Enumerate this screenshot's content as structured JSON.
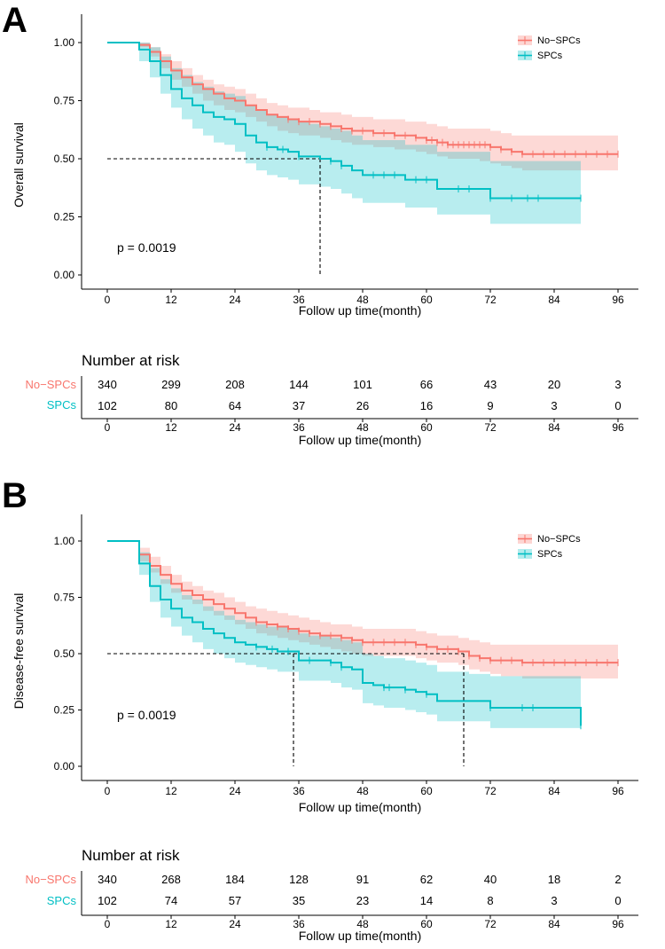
{
  "colors": {
    "no_spcs": "#F8766D",
    "spcs": "#00BFC4",
    "no_spcs_band": "#F8766D",
    "spcs_band": "#00BFC4"
  },
  "chart_data": [
    {
      "panel": "A",
      "type": "line",
      "xlabel": "Follow up time(month)",
      "ylabel": "Overall survival",
      "xlim": [
        0,
        96
      ],
      "ylim": [
        0,
        1
      ],
      "xticks": [
        0,
        12,
        24,
        36,
        48,
        60,
        72,
        84,
        96
      ],
      "yticks": [
        "0.00",
        "0.25",
        "0.50",
        "0.75",
        "1.00"
      ],
      "legend_position": "top-right",
      "pvalue": "p = 0.0019",
      "median_lines": [
        {
          "series": "SPCs",
          "x": 40,
          "y": 0.5
        }
      ],
      "series": [
        {
          "name": "No-SPCs",
          "x": [
            0,
            4,
            6,
            8,
            10,
            12,
            14,
            16,
            18,
            20,
            22,
            24,
            26,
            28,
            30,
            32,
            34,
            36,
            38,
            40,
            42,
            44,
            46,
            48,
            50,
            52,
            54,
            56,
            58,
            60,
            62,
            64,
            66,
            68,
            70,
            72,
            74,
            76,
            78,
            80,
            82,
            84,
            86,
            88,
            90,
            92,
            94,
            96
          ],
          "y": [
            1.0,
            1.0,
            0.99,
            0.96,
            0.92,
            0.88,
            0.85,
            0.82,
            0.8,
            0.78,
            0.76,
            0.75,
            0.73,
            0.71,
            0.69,
            0.68,
            0.67,
            0.66,
            0.66,
            0.65,
            0.64,
            0.63,
            0.62,
            0.62,
            0.61,
            0.61,
            0.6,
            0.6,
            0.59,
            0.58,
            0.57,
            0.56,
            0.56,
            0.56,
            0.56,
            0.55,
            0.54,
            0.53,
            0.52,
            0.52,
            0.52,
            0.52,
            0.52,
            0.52,
            0.52,
            0.52,
            0.52,
            0.52
          ],
          "lower": [
            1.0,
            1.0,
            0.98,
            0.94,
            0.89,
            0.84,
            0.81,
            0.78,
            0.75,
            0.73,
            0.71,
            0.7,
            0.68,
            0.66,
            0.64,
            0.62,
            0.61,
            0.6,
            0.6,
            0.59,
            0.58,
            0.57,
            0.56,
            0.56,
            0.55,
            0.55,
            0.54,
            0.54,
            0.53,
            0.52,
            0.51,
            0.5,
            0.5,
            0.5,
            0.49,
            0.48,
            0.47,
            0.46,
            0.45,
            0.45,
            0.45,
            0.45,
            0.45,
            0.45,
            0.45,
            0.45,
            0.45,
            0.45
          ],
          "upper": [
            1.0,
            1.0,
            1.0,
            0.98,
            0.95,
            0.92,
            0.89,
            0.86,
            0.84,
            0.82,
            0.81,
            0.8,
            0.78,
            0.76,
            0.74,
            0.73,
            0.72,
            0.72,
            0.71,
            0.7,
            0.7,
            0.69,
            0.68,
            0.68,
            0.67,
            0.67,
            0.67,
            0.66,
            0.66,
            0.65,
            0.64,
            0.63,
            0.63,
            0.63,
            0.63,
            0.62,
            0.61,
            0.6,
            0.6,
            0.6,
            0.6,
            0.6,
            0.6,
            0.6,
            0.6,
            0.6,
            0.6,
            0.6
          ],
          "censors": [
            34,
            36,
            38,
            40,
            42,
            44,
            46,
            48,
            50,
            52,
            54,
            56,
            58,
            60,
            61,
            62,
            63,
            64,
            65,
            66,
            67,
            68,
            69,
            70,
            71,
            72,
            74,
            76,
            78,
            80,
            82,
            84,
            86,
            88,
            90,
            92,
            94,
            96
          ]
        },
        {
          "name": "SPCs",
          "x": [
            0,
            3,
            6,
            8,
            10,
            12,
            14,
            16,
            18,
            20,
            22,
            24,
            26,
            28,
            30,
            32,
            34,
            36,
            38,
            40,
            42,
            44,
            46,
            48,
            50,
            52,
            54,
            56,
            58,
            60,
            62,
            64,
            66,
            68,
            70,
            72,
            74,
            76,
            78,
            80,
            82,
            84,
            86,
            88,
            89
          ],
          "y": [
            1.0,
            1.0,
            0.97,
            0.92,
            0.86,
            0.8,
            0.76,
            0.73,
            0.7,
            0.68,
            0.67,
            0.65,
            0.6,
            0.57,
            0.55,
            0.54,
            0.53,
            0.51,
            0.51,
            0.5,
            0.49,
            0.47,
            0.45,
            0.43,
            0.43,
            0.43,
            0.43,
            0.41,
            0.41,
            0.41,
            0.37,
            0.37,
            0.37,
            0.37,
            0.37,
            0.33,
            0.33,
            0.33,
            0.33,
            0.33,
            0.33,
            0.33,
            0.33,
            0.33,
            0.33
          ],
          "lower": [
            1.0,
            1.0,
            0.92,
            0.85,
            0.78,
            0.72,
            0.67,
            0.63,
            0.6,
            0.57,
            0.56,
            0.53,
            0.48,
            0.45,
            0.43,
            0.42,
            0.41,
            0.39,
            0.39,
            0.38,
            0.37,
            0.35,
            0.33,
            0.31,
            0.31,
            0.31,
            0.31,
            0.29,
            0.29,
            0.29,
            0.26,
            0.26,
            0.26,
            0.26,
            0.26,
            0.22,
            0.22,
            0.22,
            0.22,
            0.22,
            0.22,
            0.22,
            0.22,
            0.22,
            0.22
          ],
          "upper": [
            1.0,
            1.0,
            1.0,
            0.98,
            0.94,
            0.89,
            0.86,
            0.83,
            0.81,
            0.79,
            0.78,
            0.77,
            0.73,
            0.71,
            0.69,
            0.68,
            0.67,
            0.66,
            0.65,
            0.64,
            0.63,
            0.62,
            0.6,
            0.58,
            0.58,
            0.58,
            0.58,
            0.56,
            0.56,
            0.56,
            0.53,
            0.53,
            0.53,
            0.53,
            0.53,
            0.49,
            0.49,
            0.49,
            0.49,
            0.49,
            0.49,
            0.49,
            0.49,
            0.49,
            0.49
          ],
          "censors": [
            30,
            33,
            36,
            42,
            44,
            50,
            52,
            54,
            58,
            60,
            66,
            68,
            72,
            76,
            79,
            81,
            89
          ]
        }
      ],
      "risk_table": {
        "title": "Number at risk",
        "xlabel": "Follow up time(month)",
        "rows": [
          {
            "name": "No−SPCs",
            "values": [
              "340",
              "299",
              "208",
              "144",
              "101",
              "66",
              "43",
              "20",
              "3"
            ]
          },
          {
            "name": "SPCs",
            "values": [
              "102",
              "80",
              "64",
              "37",
              "26",
              "16",
              "9",
              "3",
              "0"
            ]
          }
        ]
      },
      "legend": [
        "No−SPCs",
        "SPCs"
      ]
    },
    {
      "panel": "B",
      "type": "line",
      "xlabel": "Follow up time(month)",
      "ylabel": "Disease-free survival",
      "xlim": [
        0,
        96
      ],
      "ylim": [
        0,
        1
      ],
      "xticks": [
        0,
        12,
        24,
        36,
        48,
        60,
        72,
        84,
        96
      ],
      "yticks": [
        "0.00",
        "0.25",
        "0.50",
        "0.75",
        "1.00"
      ],
      "legend_position": "top-right",
      "pvalue": "p = 0.0019",
      "median_lines": [
        {
          "series": "SPCs",
          "x": 35,
          "y": 0.5
        },
        {
          "series": "No-SPCs",
          "x": 67,
          "y": 0.5
        }
      ],
      "series": [
        {
          "name": "No-SPCs",
          "x": [
            0,
            3,
            6,
            8,
            10,
            12,
            14,
            16,
            18,
            20,
            22,
            24,
            26,
            28,
            30,
            32,
            34,
            36,
            38,
            40,
            42,
            44,
            46,
            48,
            50,
            52,
            54,
            56,
            58,
            60,
            62,
            64,
            66,
            68,
            70,
            72,
            74,
            76,
            78,
            80,
            82,
            84,
            86,
            88,
            90,
            92,
            94,
            96
          ],
          "y": [
            1.0,
            1.0,
            0.94,
            0.89,
            0.85,
            0.81,
            0.78,
            0.76,
            0.74,
            0.72,
            0.7,
            0.68,
            0.66,
            0.64,
            0.63,
            0.62,
            0.61,
            0.6,
            0.59,
            0.58,
            0.58,
            0.57,
            0.56,
            0.55,
            0.55,
            0.55,
            0.55,
            0.55,
            0.54,
            0.53,
            0.52,
            0.52,
            0.51,
            0.49,
            0.48,
            0.47,
            0.47,
            0.47,
            0.46,
            0.46,
            0.46,
            0.46,
            0.46,
            0.46,
            0.46,
            0.46,
            0.46,
            0.46
          ],
          "lower": [
            1.0,
            1.0,
            0.91,
            0.86,
            0.81,
            0.77,
            0.74,
            0.72,
            0.69,
            0.67,
            0.65,
            0.63,
            0.61,
            0.59,
            0.58,
            0.57,
            0.56,
            0.55,
            0.54,
            0.53,
            0.52,
            0.51,
            0.5,
            0.49,
            0.49,
            0.49,
            0.49,
            0.49,
            0.48,
            0.47,
            0.46,
            0.46,
            0.45,
            0.43,
            0.42,
            0.41,
            0.4,
            0.4,
            0.39,
            0.39,
            0.39,
            0.39,
            0.39,
            0.39,
            0.39,
            0.39,
            0.39,
            0.39
          ],
          "upper": [
            1.0,
            1.0,
            0.97,
            0.93,
            0.89,
            0.85,
            0.82,
            0.8,
            0.78,
            0.77,
            0.75,
            0.73,
            0.71,
            0.7,
            0.69,
            0.68,
            0.67,
            0.66,
            0.65,
            0.64,
            0.63,
            0.63,
            0.62,
            0.61,
            0.61,
            0.61,
            0.61,
            0.61,
            0.6,
            0.59,
            0.58,
            0.58,
            0.57,
            0.56,
            0.55,
            0.54,
            0.54,
            0.54,
            0.54,
            0.54,
            0.54,
            0.54,
            0.54,
            0.54,
            0.54,
            0.54,
            0.54,
            0.54
          ],
          "censors": [
            28,
            30,
            32,
            34,
            36,
            38,
            40,
            42,
            44,
            46,
            48,
            50,
            52,
            54,
            56,
            58,
            60,
            62,
            64,
            66,
            68,
            70,
            72,
            74,
            76,
            78,
            80,
            82,
            84,
            86,
            88,
            90,
            92,
            94,
            96
          ]
        },
        {
          "name": "SPCs",
          "x": [
            0,
            3,
            6,
            8,
            10,
            12,
            14,
            16,
            18,
            20,
            22,
            24,
            26,
            28,
            30,
            32,
            34,
            36,
            38,
            40,
            42,
            44,
            46,
            48,
            50,
            52,
            54,
            56,
            58,
            60,
            62,
            64,
            66,
            68,
            70,
            72,
            74,
            76,
            78,
            80,
            82,
            84,
            86,
            88,
            89
          ],
          "y": [
            1.0,
            1.0,
            0.9,
            0.8,
            0.74,
            0.7,
            0.66,
            0.64,
            0.61,
            0.59,
            0.57,
            0.55,
            0.54,
            0.53,
            0.52,
            0.51,
            0.51,
            0.47,
            0.47,
            0.47,
            0.46,
            0.44,
            0.43,
            0.37,
            0.36,
            0.35,
            0.35,
            0.34,
            0.33,
            0.32,
            0.29,
            0.29,
            0.29,
            0.29,
            0.29,
            0.26,
            0.26,
            0.26,
            0.26,
            0.26,
            0.26,
            0.26,
            0.26,
            0.26,
            0.18
          ],
          "lower": [
            1.0,
            1.0,
            0.85,
            0.73,
            0.66,
            0.62,
            0.58,
            0.55,
            0.52,
            0.5,
            0.48,
            0.46,
            0.45,
            0.44,
            0.43,
            0.42,
            0.42,
            0.38,
            0.38,
            0.38,
            0.37,
            0.35,
            0.34,
            0.28,
            0.27,
            0.26,
            0.26,
            0.25,
            0.24,
            0.23,
            0.2,
            0.2,
            0.2,
            0.2,
            0.2,
            0.17,
            0.17,
            0.17,
            0.17,
            0.17,
            0.17,
            0.17,
            0.17,
            0.17,
            0.17
          ],
          "upper": [
            1.0,
            1.0,
            0.95,
            0.88,
            0.83,
            0.79,
            0.76,
            0.74,
            0.71,
            0.69,
            0.67,
            0.65,
            0.64,
            0.63,
            0.62,
            0.62,
            0.61,
            0.59,
            0.58,
            0.58,
            0.57,
            0.56,
            0.55,
            0.5,
            0.49,
            0.48,
            0.48,
            0.47,
            0.46,
            0.45,
            0.42,
            0.42,
            0.42,
            0.41,
            0.41,
            0.4,
            0.4,
            0.4,
            0.4,
            0.4,
            0.4,
            0.4,
            0.4,
            0.4,
            0.4
          ],
          "censors": [
            28,
            31,
            34,
            38,
            42,
            44,
            52,
            53,
            56,
            60,
            72,
            78,
            80,
            89
          ]
        }
      ],
      "risk_table": {
        "title": "Number at risk",
        "xlabel": "Follow up time(month)",
        "rows": [
          {
            "name": "No−SPCs",
            "values": [
              "340",
              "268",
              "184",
              "128",
              "91",
              "62",
              "40",
              "18",
              "2"
            ]
          },
          {
            "name": "SPCs",
            "values": [
              "102",
              "74",
              "57",
              "35",
              "23",
              "14",
              "8",
              "3",
              "0"
            ]
          }
        ]
      },
      "legend": [
        "No−SPCs",
        "SPCs"
      ]
    }
  ]
}
